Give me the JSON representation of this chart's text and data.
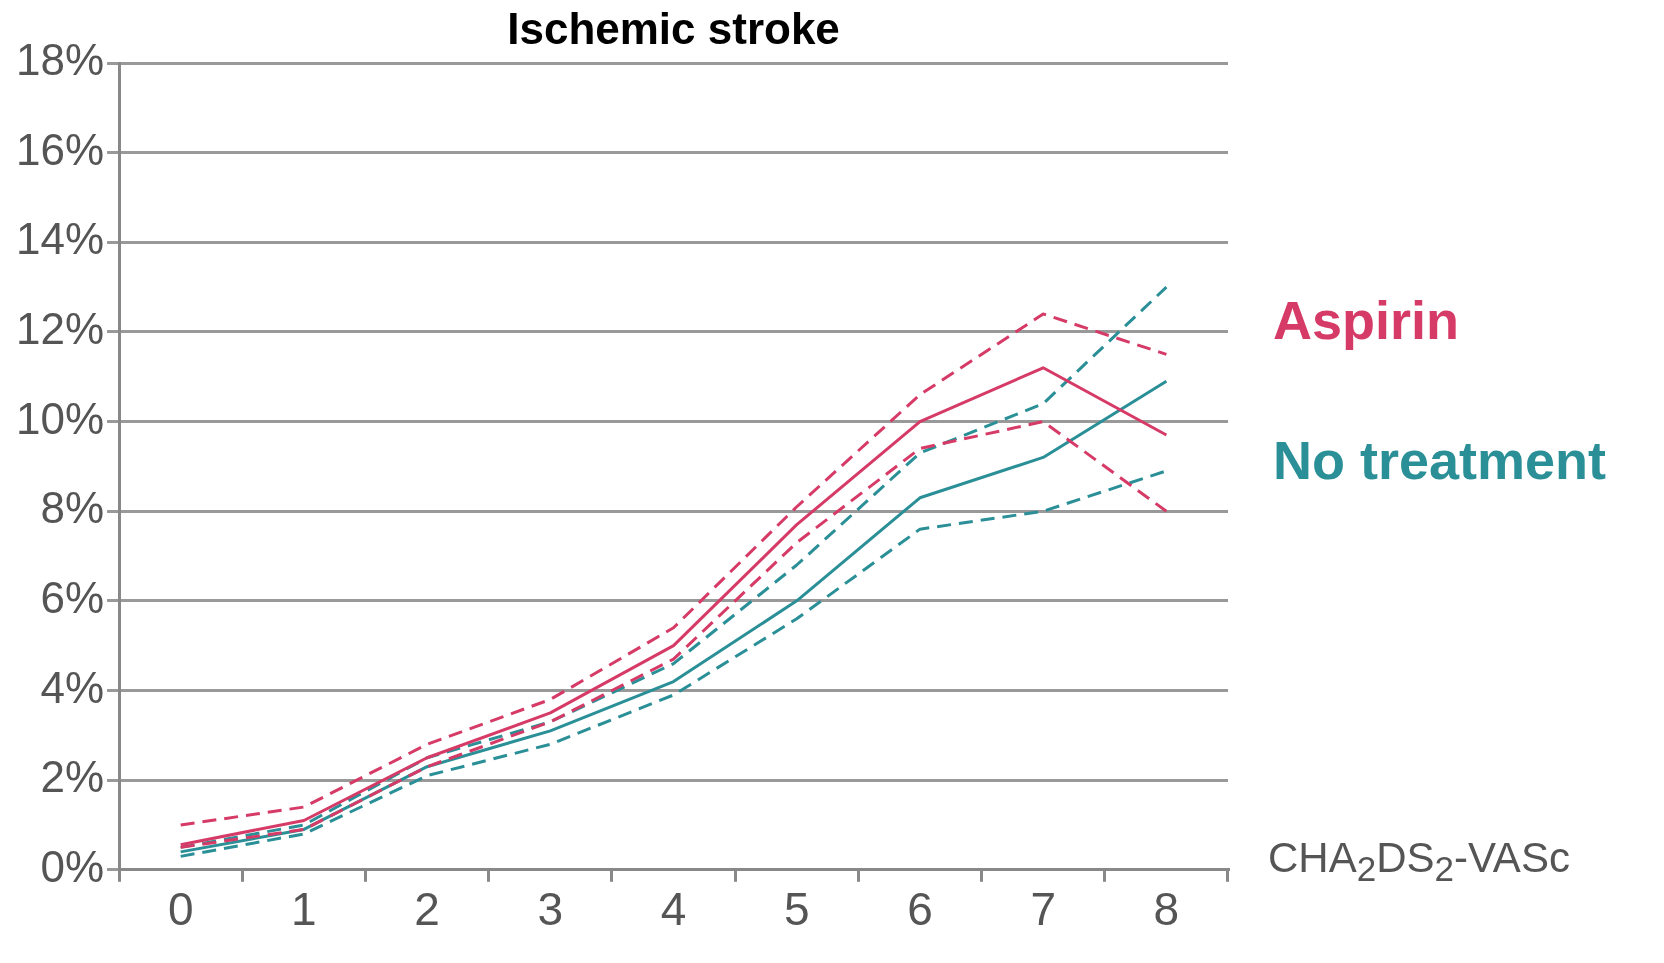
{
  "chart_data": {
    "type": "line",
    "title": "Ischemic stroke",
    "xlabel": "CHA$_{2}$DS$_{2}$-VASc",
    "categories": [
      "0",
      "1",
      "2",
      "3",
      "4",
      "5",
      "6",
      "7",
      "8"
    ],
    "series": [
      {
        "name": "Aspirin",
        "color": "#d63a66",
        "values": [
          0.56,
          1.1,
          2.5,
          3.5,
          5.0,
          7.7,
          10.0,
          11.2,
          9.7
        ]
      },
      {
        "color": "#d63a66",
        "line_style": "dashed",
        "values": [
          1.0,
          1.4,
          2.8,
          3.8,
          5.4,
          8.1,
          10.6,
          12.4,
          11.5
        ]
      },
      {
        "color": "#d63a66",
        "line_style": "dashed",
        "values": [
          0.5,
          0.9,
          2.3,
          3.3,
          4.7,
          7.3,
          9.4,
          10.0,
          8.0
        ]
      },
      {
        "name": "No treatment",
        "color": "#2a8f96",
        "values": [
          0.4,
          0.9,
          2.3,
          3.1,
          4.2,
          6.0,
          8.3,
          9.2,
          10.9
        ]
      },
      {
        "color": "#2a8f96",
        "line_style": "dashed",
        "values": [
          0.5,
          1.0,
          2.5,
          3.3,
          4.6,
          6.8,
          9.3,
          10.4,
          13.0
        ]
      },
      {
        "color": "#2a8f96",
        "line_style": "dashed",
        "values": [
          0.3,
          0.8,
          2.1,
          2.8,
          3.9,
          5.6,
          7.6,
          8.0,
          8.9
        ]
      }
    ],
    "ylim": [
      0,
      18
    ],
    "yticks": [
      {
        "value": 0,
        "label": "0%"
      },
      {
        "value": 2,
        "label": "2%"
      },
      {
        "value": 4,
        "label": "4%"
      },
      {
        "value": 6,
        "label": "6%"
      },
      {
        "value": 8,
        "label": "8%"
      },
      {
        "value": 10,
        "label": "10%"
      },
      {
        "value": 12,
        "label": "12%"
      },
      {
        "value": 14,
        "label": "14%"
      },
      {
        "value": 16,
        "label": "16%"
      },
      {
        "value": 18,
        "label": "18%"
      }
    ],
    "grid": "y",
    "legend": "right",
    "marker": "none",
    "line_style": "solid"
  }
}
